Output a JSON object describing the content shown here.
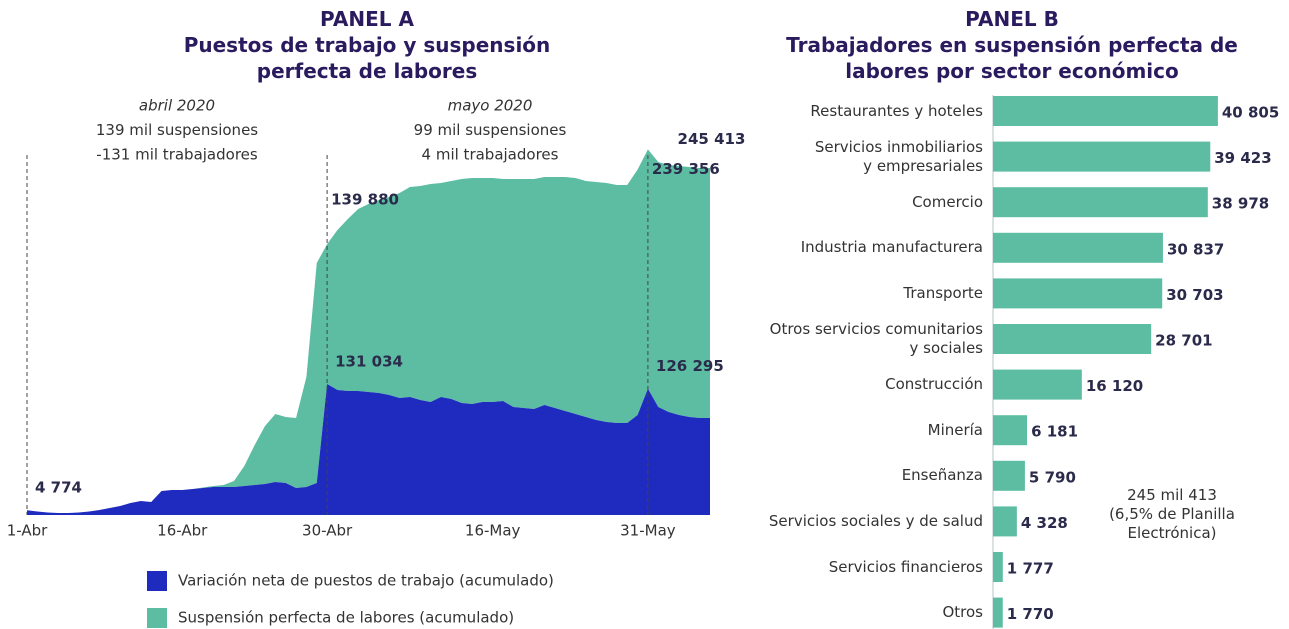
{
  "chart_data": [
    {
      "type": "area",
      "title": "PANEL A",
      "subtitle": "Puestos de trabajo y suspensión perfecta de labores",
      "stacked": true,
      "categories": [
        "1-Abr",
        null,
        null,
        null,
        null,
        null,
        null,
        null,
        null,
        null,
        null,
        null,
        null,
        null,
        null,
        "16-Abr",
        null,
        null,
        null,
        null,
        null,
        null,
        null,
        null,
        null,
        null,
        null,
        null,
        null,
        "30-Abr",
        null,
        null,
        null,
        null,
        null,
        null,
        null,
        null,
        null,
        null,
        null,
        null,
        null,
        null,
        null,
        "16-May",
        null,
        null,
        null,
        null,
        null,
        null,
        null,
        null,
        null,
        null,
        null,
        null,
        null,
        null,
        "31-May",
        null,
        null,
        null,
        null,
        null,
        null
      ],
      "ylim": [
        0,
        380000
      ],
      "series": [
        {
          "name": "Variación neta de puestos de trabajo (acumulado)",
          "color": "#1f2bbf",
          "values": [
            4774,
            3500,
            2500,
            2000,
            2000,
            2500,
            3500,
            5000,
            7000,
            9000,
            12000,
            14000,
            13000,
            24000,
            25000,
            25000,
            26000,
            27000,
            28000,
            28000,
            28000,
            29000,
            30000,
            31000,
            33000,
            32000,
            27000,
            28000,
            32000,
            131034,
            125000,
            124000,
            124000,
            123000,
            122000,
            120000,
            117000,
            118000,
            115000,
            113000,
            118000,
            116000,
            112000,
            111000,
            113000,
            113000,
            114000,
            108000,
            107000,
            106000,
            110000,
            107000,
            104000,
            101000,
            98000,
            95000,
            93000,
            92000,
            92000,
            100000,
            126295,
            108000,
            103000,
            100000,
            98000,
            97000,
            97000
          ],
          "value_labels": [
            "4 774",
            null,
            null,
            null,
            null,
            null,
            null,
            null,
            null,
            null,
            null,
            null,
            null,
            null,
            null,
            null,
            null,
            null,
            null,
            null,
            null,
            null,
            null,
            null,
            null,
            null,
            null,
            null,
            null,
            "131 034",
            null,
            null,
            null,
            null,
            null,
            null,
            null,
            null,
            null,
            null,
            null,
            null,
            null,
            null,
            null,
            null,
            null,
            null,
            null,
            null,
            null,
            null,
            null,
            null,
            null,
            null,
            null,
            null,
            null,
            null,
            "126 295",
            null,
            null,
            null,
            null,
            null,
            null
          ]
        },
        {
          "name": "Suspensión perfecta de labores (acumulado)",
          "color": "#5dbda3",
          "values": [
            0,
            0,
            0,
            0,
            0,
            0,
            0,
            0,
            0,
            0,
            0,
            0,
            0,
            0,
            0,
            0,
            0,
            500,
            1000,
            2000,
            6000,
            20000,
            40000,
            58000,
            68000,
            66000,
            70000,
            110000,
            220000,
            139880,
            160000,
            172000,
            182000,
            188000,
            193000,
            198000,
            205000,
            210000,
            214000,
            218000,
            214000,
            218000,
            224000,
            226000,
            224000,
            224000,
            222000,
            228000,
            229000,
            230000,
            228000,
            231000,
            234000,
            236000,
            236000,
            238000,
            239000,
            238000,
            238000,
            245413,
            239356,
            245000,
            247000,
            249000,
            250000,
            250000,
            250000
          ],
          "value_labels": [
            null,
            null,
            null,
            null,
            null,
            null,
            null,
            null,
            null,
            null,
            null,
            null,
            null,
            null,
            null,
            null,
            null,
            null,
            null,
            null,
            null,
            null,
            null,
            null,
            null,
            null,
            null,
            null,
            null,
            "139 880",
            null,
            null,
            null,
            null,
            null,
            null,
            null,
            null,
            null,
            null,
            null,
            null,
            null,
            null,
            null,
            null,
            null,
            null,
            null,
            null,
            null,
            null,
            null,
            null,
            null,
            null,
            null,
            null,
            null,
            "245 413",
            "239 356",
            null,
            null,
            null,
            null,
            null,
            null
          ]
        }
      ],
      "annotations": [
        {
          "lines": [
            "abril 2020",
            "139 mil suspensiones",
            "-131 mil trabajadores"
          ]
        },
        {
          "lines": [
            "mayo 2020",
            "99 mil suspensiones",
            "4 mil trabajadores"
          ]
        }
      ]
    },
    {
      "type": "hbar",
      "title": "PANEL B",
      "subtitle": "Trabajadores en suspensión perfecta de labores por sector económico",
      "categories": [
        "Restaurantes y hoteles",
        "Servicios inmobiliarios\ny empresariales",
        "Comercio",
        "Industria manufacturera",
        "Transporte",
        "Otros servicios comunitarios\ny sociales",
        "Construcción",
        "Minería",
        "Enseñanza",
        "Servicios sociales y de salud",
        "Servicios financieros",
        "Otros"
      ],
      "values": [
        40805,
        39423,
        38978,
        30837,
        30703,
        28701,
        16120,
        6181,
        5790,
        4328,
        1777,
        1770
      ],
      "value_labels": [
        "40 805",
        "39 423",
        "38 978",
        "30 837",
        "30 703",
        "28 701",
        "16 120",
        "6 181",
        "5 790",
        "4 328",
        "1 777",
        "1 770"
      ],
      "color": "#5dbda3",
      "xlim": [
        0,
        45000
      ],
      "annotation": "245 mil 413\n(6,5% de Planilla\nElectrónica)"
    }
  ]
}
